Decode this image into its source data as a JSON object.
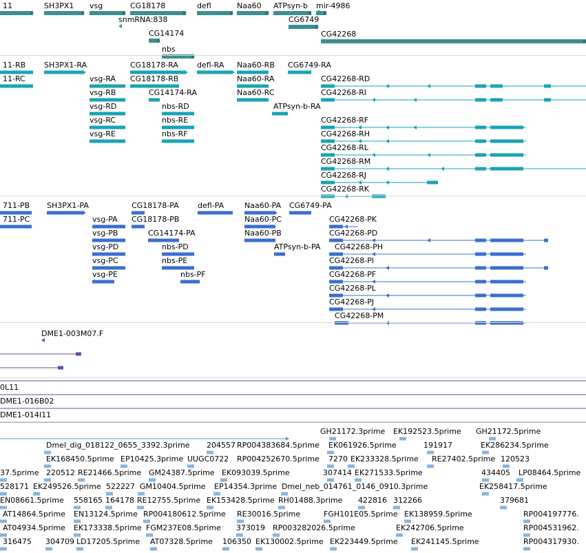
{
  "colors": {
    "gene": "#3e8f90",
    "transcript_1": "#1aa3b6",
    "transcript_2": "#3a6fcf",
    "clone": "#6b4aa8",
    "est": "#5b9bd5",
    "est_mark": "#89b5df"
  },
  "tracks": [
    {
      "id": "genes",
      "items": [
        {
          "label": "11"
        },
        {
          "label": "SH3PX1"
        },
        {
          "label": "vsg"
        },
        {
          "label": "CG18178"
        },
        {
          "label": "defl"
        },
        {
          "label": "Naa60"
        },
        {
          "label": "ATPsyn-b"
        },
        {
          "label": "mir-4986"
        },
        {
          "label": "snmRNA:838"
        },
        {
          "label": "CG6749"
        },
        {
          "label": "CG14174"
        },
        {
          "label": "CG42268"
        },
        {
          "label": "nbs"
        }
      ]
    },
    {
      "id": "transcripts-set-1",
      "items": [
        {
          "label": "11-RB"
        },
        {
          "label": "SH3PX1-RA"
        },
        {
          "label": "CG18178-RA"
        },
        {
          "label": "defl-RA"
        },
        {
          "label": "Naa60-RB"
        },
        {
          "label": "CG6749-RA"
        },
        {
          "label": "11-RC"
        },
        {
          "label": "vsg-RA"
        },
        {
          "label": "CG18178-RB"
        },
        {
          "label": "Naa60-RA"
        },
        {
          "label": "CG42268-RD"
        },
        {
          "label": "vsg-RB"
        },
        {
          "label": "CG14174-RA"
        },
        {
          "label": "Naa60-RC"
        },
        {
          "label": "CG42268-RI"
        },
        {
          "label": "vsg-RD"
        },
        {
          "label": "nbs-RD"
        },
        {
          "label": "ATPsyn-b-RA"
        },
        {
          "label": "vsg-RC"
        },
        {
          "label": "nbs-RE"
        },
        {
          "label": "CG42268-RF"
        },
        {
          "label": "vsg-RE"
        },
        {
          "label": "nbs-RF"
        },
        {
          "label": "CG42268-RH"
        },
        {
          "label": "CG42268-RL"
        },
        {
          "label": "CG42268-RM"
        },
        {
          "label": "CG42268-RJ"
        },
        {
          "label": "CG42268-RK"
        }
      ]
    },
    {
      "id": "transcripts-set-2",
      "items": [
        {
          "label": "711-PB"
        },
        {
          "label": "SH3PX1-PA"
        },
        {
          "label": "CG18178-PA"
        },
        {
          "label": "defl-PA"
        },
        {
          "label": "Naa60-PA"
        },
        {
          "label": "CG6749-PA"
        },
        {
          "label": "711-PC"
        },
        {
          "label": "CG18178-PB"
        },
        {
          "label": "Naa60-PC"
        },
        {
          "label": "vsg-PA"
        },
        {
          "label": "CG42268-PK"
        },
        {
          "label": "vsg-PB"
        },
        {
          "label": "CG14174-PA"
        },
        {
          "label": "Naa60-PB"
        },
        {
          "label": "CG42268-PD"
        },
        {
          "label": "vsg-PD"
        },
        {
          "label": "nbs-PD"
        },
        {
          "label": "ATPsyn-b-PA"
        },
        {
          "label": "CG42268-PH"
        },
        {
          "label": "vsg-PC"
        },
        {
          "label": "nbs-PE"
        },
        {
          "label": "CG42268-PI"
        },
        {
          "label": "vsg-PE"
        },
        {
          "label": "nbs-PF"
        },
        {
          "label": "CG42268-PF"
        },
        {
          "label": "CG42268-PL"
        },
        {
          "label": "CG42268-PJ"
        },
        {
          "label": "CG42268-PM"
        }
      ]
    },
    {
      "id": "clone-ends",
      "items": [
        {
          "label": "DME1-003M07.F"
        }
      ]
    },
    {
      "id": "bac-clones",
      "items": [
        {
          "label": "0L11"
        },
        {
          "label": "DME1-016B02"
        },
        {
          "label": "DME1-014I11"
        }
      ]
    },
    {
      "id": "est-alignments",
      "items": [
        {
          "label": "GH21172.3prime"
        },
        {
          "label": "EK192523.5prime"
        },
        {
          "label": "GH21172.5prime"
        },
        {
          "label": "Dmel_dig_018122_0655_3392.3prime"
        },
        {
          "label": "204557"
        },
        {
          "label": "RP004383684.5prime"
        },
        {
          "label": "EK061926.5prime"
        },
        {
          "label": "191917"
        },
        {
          "label": "EK286234.5prime"
        },
        {
          "label": "EK168450.5prime"
        },
        {
          "label": "EP10425.3prime"
        },
        {
          "label": "UUGC0722"
        },
        {
          "label": "RP004252670.5prime"
        },
        {
          "label": "7270"
        },
        {
          "label": "EK233328.5prime"
        },
        {
          "label": "RE27402.5prime"
        },
        {
          "label": "120523"
        },
        {
          "label": "37.5prime"
        },
        {
          "label": "220512"
        },
        {
          "label": "RE21466.5prime"
        },
        {
          "label": "GM24387.5prime"
        },
        {
          "label": "EK093039.5prime"
        },
        {
          "label": "307414"
        },
        {
          "label": "EK271533.5prime"
        },
        {
          "label": "434405"
        },
        {
          "label": "LP08464.5prime"
        },
        {
          "label": "528171"
        },
        {
          "label": "EK249526.5prime"
        },
        {
          "label": "522227"
        },
        {
          "label": "GM10404.5prime"
        },
        {
          "label": "EP14354.3prime"
        },
        {
          "label": "Dmel_neb_014761_0146_0910.3prime"
        },
        {
          "label": "EK258417.5prime"
        },
        {
          "label": "EN08661.5prime"
        },
        {
          "label": "558165"
        },
        {
          "label": "164178"
        },
        {
          "label": "RE12755.5prime"
        },
        {
          "label": "EK153428.5prime"
        },
        {
          "label": "RH01488.3prime"
        },
        {
          "label": "422816"
        },
        {
          "label": "312266"
        },
        {
          "label": "379681"
        },
        {
          "label": "AT14864.5prime"
        },
        {
          "label": "EN13124.5prime"
        },
        {
          "label": "RP004180612.5prime"
        },
        {
          "label": "RE30016.5prime"
        },
        {
          "label": "FGH101E05.5prime"
        },
        {
          "label": "EK138959.5prime"
        },
        {
          "label": "RP004197776."
        },
        {
          "label": "AT04934.5prime"
        },
        {
          "label": "EK173338.5prime"
        },
        {
          "label": "FGM237E08.5prime"
        },
        {
          "label": "373019"
        },
        {
          "label": "RP003282026.5prime"
        },
        {
          "label": "EK242706.5prime"
        },
        {
          "label": "RP004531962."
        },
        {
          "label": "316475"
        },
        {
          "label": "304709"
        },
        {
          "label": "LD17205.5prime"
        },
        {
          "label": "AT07328.5prime"
        },
        {
          "label": "106350"
        },
        {
          "label": "EK130002.5prime"
        },
        {
          "label": "EK223449.5prime"
        },
        {
          "label": "EK241145.5prime"
        },
        {
          "label": "RP004317930."
        }
      ]
    }
  ]
}
